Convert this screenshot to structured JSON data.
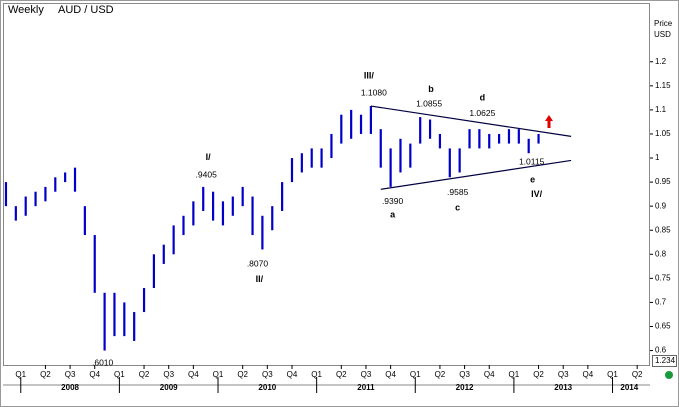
{
  "chart_data": {
    "type": "ohlc",
    "title": "Weekly",
    "subtitle": "AUD / USD",
    "y_axis_label": [
      "Price",
      "USD"
    ],
    "value_box": "1.234",
    "xlim": [
      2007.83,
      2014.38
    ],
    "ylim": [
      0.57,
      1.32
    ],
    "yticks": [
      0.6,
      0.65,
      0.7,
      0.75,
      0.8,
      0.85,
      0.9,
      0.95,
      1,
      1.05,
      1.1,
      1.15,
      1.2
    ],
    "xticks": [
      {
        "value": 2008,
        "label": "Q1"
      },
      {
        "value": 2008.25,
        "label": "Q2"
      },
      {
        "value": 2008.5,
        "label": "Q3"
      },
      {
        "value": 2008.75,
        "label": "Q4"
      },
      {
        "value": 2009,
        "label": "Q1"
      },
      {
        "value": 2009.25,
        "label": "Q2"
      },
      {
        "value": 2009.5,
        "label": "Q3"
      },
      {
        "value": 2009.75,
        "label": "Q4"
      },
      {
        "value": 2010,
        "label": "Q1"
      },
      {
        "value": 2010.25,
        "label": "Q2"
      },
      {
        "value": 2010.5,
        "label": "Q3"
      },
      {
        "value": 2010.75,
        "label": "Q4"
      },
      {
        "value": 2011,
        "label": "Q1"
      },
      {
        "value": 2011.25,
        "label": "Q2"
      },
      {
        "value": 2011.5,
        "label": "Q3"
      },
      {
        "value": 2011.75,
        "label": "Q4"
      },
      {
        "value": 2012,
        "label": "Q1"
      },
      {
        "value": 2012.25,
        "label": "Q2"
      },
      {
        "value": 2012.5,
        "label": "Q3"
      },
      {
        "value": 2012.75,
        "label": "Q4"
      },
      {
        "value": 2013,
        "label": "Q1"
      },
      {
        "value": 2013.25,
        "label": "Q2"
      },
      {
        "value": 2013.5,
        "label": "Q3"
      },
      {
        "value": 2013.75,
        "label": "Q4"
      },
      {
        "value": 2014,
        "label": "Q1"
      },
      {
        "value": 2014.25,
        "label": "Q2"
      }
    ],
    "year_labels": [
      {
        "value": 2008.5,
        "label": "2008"
      },
      {
        "value": 2009.5,
        "label": "2009"
      },
      {
        "value": 2010.5,
        "label": "2010"
      },
      {
        "value": 2011.5,
        "label": "2011"
      },
      {
        "value": 2012.5,
        "label": "2012"
      },
      {
        "value": 2013.5,
        "label": "2013"
      },
      {
        "value": 2014.17,
        "label": "2014"
      }
    ],
    "series": [
      {
        "name": "AUD / USD",
        "color": "#0000c8",
        "x": [
          2007.85,
          2007.95,
          2008.05,
          2008.15,
          2008.25,
          2008.35,
          2008.45,
          2008.55,
          2008.65,
          2008.75,
          2008.85,
          2008.95,
          2009.05,
          2009.15,
          2009.25,
          2009.35,
          2009.45,
          2009.55,
          2009.65,
          2009.75,
          2009.85,
          2009.95,
          2010.05,
          2010.15,
          2010.25,
          2010.35,
          2010.45,
          2010.55,
          2010.65,
          2010.75,
          2010.85,
          2010.95,
          2011.05,
          2011.15,
          2011.25,
          2011.35,
          2011.45,
          2011.55,
          2011.65,
          2011.75,
          2011.85,
          2011.95,
          2012.05,
          2012.15,
          2012.25,
          2012.35,
          2012.45,
          2012.55,
          2012.65,
          2012.75,
          2012.85,
          2012.95,
          2013.05,
          2013.15,
          2013.25
        ],
        "high": [
          0.95,
          0.9,
          0.92,
          0.93,
          0.94,
          0.96,
          0.97,
          0.98,
          0.9,
          0.84,
          0.72,
          0.72,
          0.7,
          0.68,
          0.73,
          0.8,
          0.82,
          0.86,
          0.88,
          0.91,
          0.94,
          0.93,
          0.91,
          0.92,
          0.94,
          0.92,
          0.88,
          0.9,
          0.95,
          1.0,
          1.01,
          1.02,
          1.02,
          1.05,
          1.09,
          1.1,
          1.09,
          1.108,
          1.06,
          1.02,
          1.04,
          1.03,
          1.085,
          1.08,
          1.05,
          1.02,
          1.02,
          1.06,
          1.06,
          1.05,
          1.05,
          1.06,
          1.06,
          1.04,
          1.05
        ],
        "low": [
          0.9,
          0.87,
          0.88,
          0.9,
          0.91,
          0.93,
          0.95,
          0.93,
          0.84,
          0.72,
          0.6,
          0.63,
          0.63,
          0.62,
          0.68,
          0.73,
          0.78,
          0.8,
          0.84,
          0.86,
          0.89,
          0.87,
          0.86,
          0.88,
          0.9,
          0.84,
          0.81,
          0.85,
          0.89,
          0.95,
          0.97,
          0.98,
          0.98,
          1.0,
          1.03,
          1.04,
          1.05,
          1.05,
          0.98,
          0.94,
          0.97,
          0.98,
          1.03,
          1.04,
          1.02,
          0.96,
          0.97,
          1.02,
          1.02,
          1.02,
          1.03,
          1.03,
          1.03,
          1.01,
          1.03
        ]
      }
    ],
    "trendlines": [
      {
        "x": [
          2011.55,
          2013.58
        ],
        "y": [
          1.108,
          1.045
        ],
        "color": "#000040"
      },
      {
        "x": [
          2011.65,
          2013.58
        ],
        "y": [
          0.935,
          0.995
        ],
        "color": "#000040"
      }
    ],
    "annotations": [
      {
        "text": "III/",
        "x": 2011.53,
        "y": 1.17,
        "style": "wave"
      },
      {
        "text": "1.1080",
        "x": 2011.58,
        "y": 1.135,
        "style": "ann"
      },
      {
        "text": "b",
        "x": 2012.16,
        "y": 1.142,
        "style": "wave"
      },
      {
        "text": "1.0855",
        "x": 2012.14,
        "y": 1.112,
        "style": "ann"
      },
      {
        "text": "d",
        "x": 2012.68,
        "y": 1.124,
        "style": "wave"
      },
      {
        "text": "1.0625",
        "x": 2012.68,
        "y": 1.092,
        "style": "ann"
      },
      {
        "text": "I/",
        "x": 2009.9,
        "y": 1.001,
        "style": "wave"
      },
      {
        "text": ".9405",
        "x": 2009.88,
        "y": 0.964,
        "style": "ann"
      },
      {
        "text": ".8070",
        "x": 2010.4,
        "y": 0.779,
        "style": "ann"
      },
      {
        "text": "II/",
        "x": 2010.42,
        "y": 0.747,
        "style": "wave"
      },
      {
        "text": ".9390",
        "x": 2011.77,
        "y": 0.909,
        "style": "ann"
      },
      {
        "text": "a",
        "x": 2011.77,
        "y": 0.881,
        "style": "wave"
      },
      {
        "text": ".9585",
        "x": 2012.43,
        "y": 0.928,
        "style": "ann"
      },
      {
        "text": "c",
        "x": 2012.43,
        "y": 0.896,
        "style": "wave"
      },
      {
        "text": "1.0115",
        "x": 2013.18,
        "y": 0.991,
        "style": "ann"
      },
      {
        "text": "e",
        "x": 2013.19,
        "y": 0.954,
        "style": "wave"
      },
      {
        "text": "IV/",
        "x": 2013.23,
        "y": 0.924,
        "style": "wave"
      },
      {
        "text": ".6010",
        "x": 2008.83,
        "y": 0.574,
        "style": "ann"
      }
    ]
  }
}
